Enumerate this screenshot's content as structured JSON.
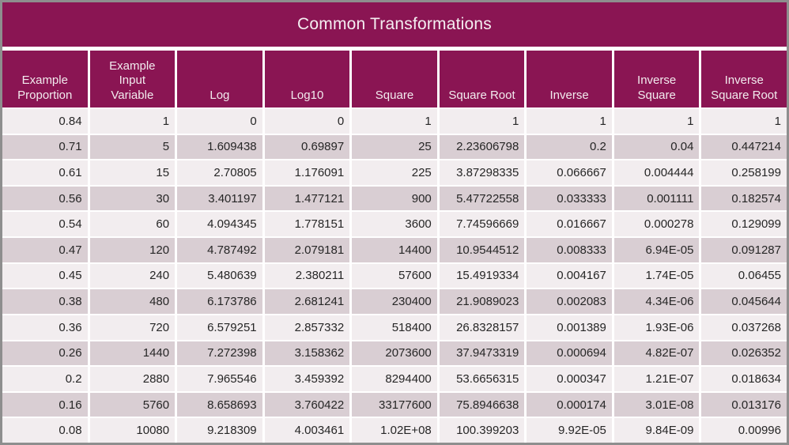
{
  "title": "Common Transformations",
  "colors": {
    "header_bg": "#8A1553",
    "header_text": "#F2EBEE",
    "row_light": "#F2EDEF",
    "row_dark": "#D9CED3",
    "separator": "#FFFFFF",
    "outer_border": "#8E8E8E",
    "cell_text": "#262626"
  },
  "chart_data": {
    "type": "table",
    "title": "Common Transformations",
    "columns": [
      "Example Proportion",
      "Example Input Variable",
      "Log",
      "Log10",
      "Square",
      "Square Root",
      "Inverse",
      "Inverse Square",
      "Inverse Square Root"
    ],
    "rows": [
      [
        "0.84",
        "1",
        "0",
        "0",
        "1",
        "1",
        "1",
        "1",
        "1"
      ],
      [
        "0.71",
        "5",
        "1.609438",
        "0.69897",
        "25",
        "2.23606798",
        "0.2",
        "0.04",
        "0.447214"
      ],
      [
        "0.61",
        "15",
        "2.70805",
        "1.176091",
        "225",
        "3.87298335",
        "0.066667",
        "0.004444",
        "0.258199"
      ],
      [
        "0.56",
        "30",
        "3.401197",
        "1.477121",
        "900",
        "5.47722558",
        "0.033333",
        "0.001111",
        "0.182574"
      ],
      [
        "0.54",
        "60",
        "4.094345",
        "1.778151",
        "3600",
        "7.74596669",
        "0.016667",
        "0.000278",
        "0.129099"
      ],
      [
        "0.47",
        "120",
        "4.787492",
        "2.079181",
        "14400",
        "10.9544512",
        "0.008333",
        "6.94E-05",
        "0.091287"
      ],
      [
        "0.45",
        "240",
        "5.480639",
        "2.380211",
        "57600",
        "15.4919334",
        "0.004167",
        "1.74E-05",
        "0.06455"
      ],
      [
        "0.38",
        "480",
        "6.173786",
        "2.681241",
        "230400",
        "21.9089023",
        "0.002083",
        "4.34E-06",
        "0.045644"
      ],
      [
        "0.36",
        "720",
        "6.579251",
        "2.857332",
        "518400",
        "26.8328157",
        "0.001389",
        "1.93E-06",
        "0.037268"
      ],
      [
        "0.26",
        "1440",
        "7.272398",
        "3.158362",
        "2073600",
        "37.9473319",
        "0.000694",
        "4.82E-07",
        "0.026352"
      ],
      [
        "0.2",
        "2880",
        "7.965546",
        "3.459392",
        "8294400",
        "53.6656315",
        "0.000347",
        "1.21E-07",
        "0.018634"
      ],
      [
        "0.16",
        "5760",
        "8.658693",
        "3.760422",
        "33177600",
        "75.8946638",
        "0.000174",
        "3.01E-08",
        "0.013176"
      ],
      [
        "0.08",
        "10080",
        "9.218309",
        "4.003461",
        "1.02E+08",
        "100.399203",
        "9.92E-05",
        "9.84E-09",
        "0.00996"
      ]
    ]
  }
}
